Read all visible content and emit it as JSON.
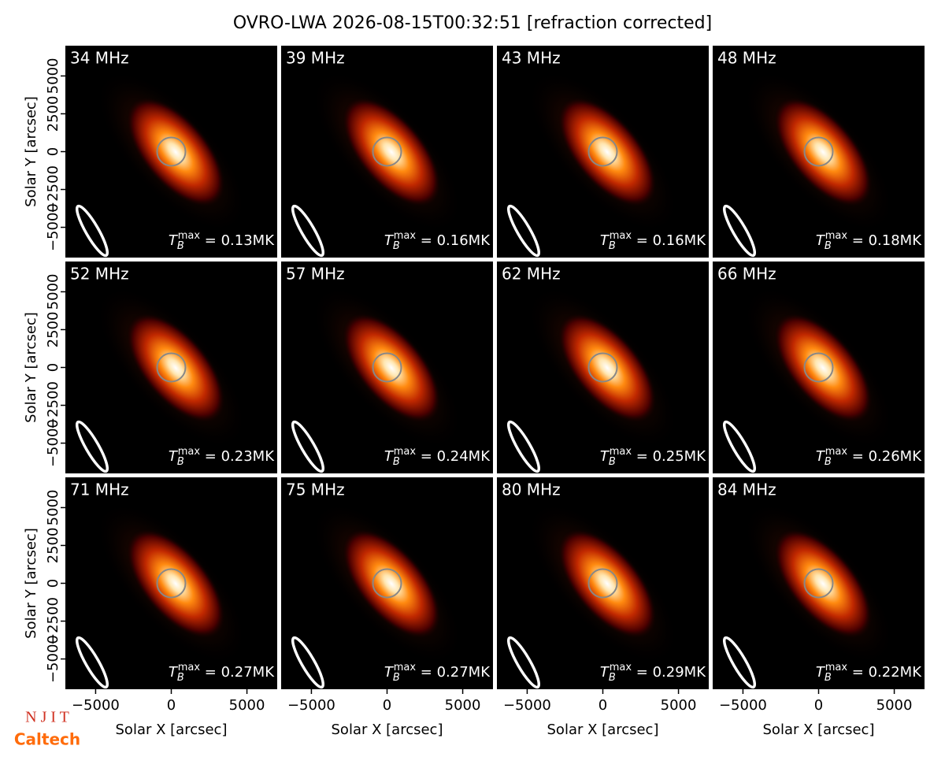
{
  "chart_data": {
    "type": "image",
    "title": "OVRO-LWA 2026-08-15T00:32:51 [refraction corrected]",
    "xlabel": "Solar X [arcsec]",
    "ylabel": "Solar Y [arcsec]",
    "xlim": [
      -7000,
      7000
    ],
    "ylim": [
      -7000,
      7000
    ],
    "xticks": [
      {
        "value": -5000,
        "label": "−5000"
      },
      0,
      5000
    ],
    "yticks": [
      {
        "value": -5000,
        "label": "−5000"
      },
      {
        "value": -2500,
        "label": "−2500"
      },
      0,
      2500,
      5000
    ],
    "tb_symbol": "T",
    "tb_sub": "B",
    "tb_sup": "max",
    "panels": [
      {
        "label": "34 MHz",
        "tb_label": " = 0.13MK"
      },
      {
        "label": "39 MHz",
        "tb_label": " = 0.16MK"
      },
      {
        "label": "43 MHz",
        "tb_label": " = 0.16MK"
      },
      {
        "label": "48 MHz",
        "tb_label": " = 0.18MK"
      },
      {
        "label": "52 MHz",
        "tb_label": " = 0.23MK"
      },
      {
        "label": "57 MHz",
        "tb_label": " = 0.24MK"
      },
      {
        "label": "62 MHz",
        "tb_label": " = 0.25MK"
      },
      {
        "label": "66 MHz",
        "tb_label": " = 0.26MK"
      },
      {
        "label": "71 MHz",
        "tb_label": " = 0.27MK"
      },
      {
        "label": "75 MHz",
        "tb_label": " = 0.27MK"
      },
      {
        "label": "80 MHz",
        "tb_label": " = 0.29MK"
      },
      {
        "label": "84 MHz",
        "tb_label": " = 0.22MK"
      }
    ]
  },
  "logos": [
    "N J I T",
    "Caltech"
  ]
}
